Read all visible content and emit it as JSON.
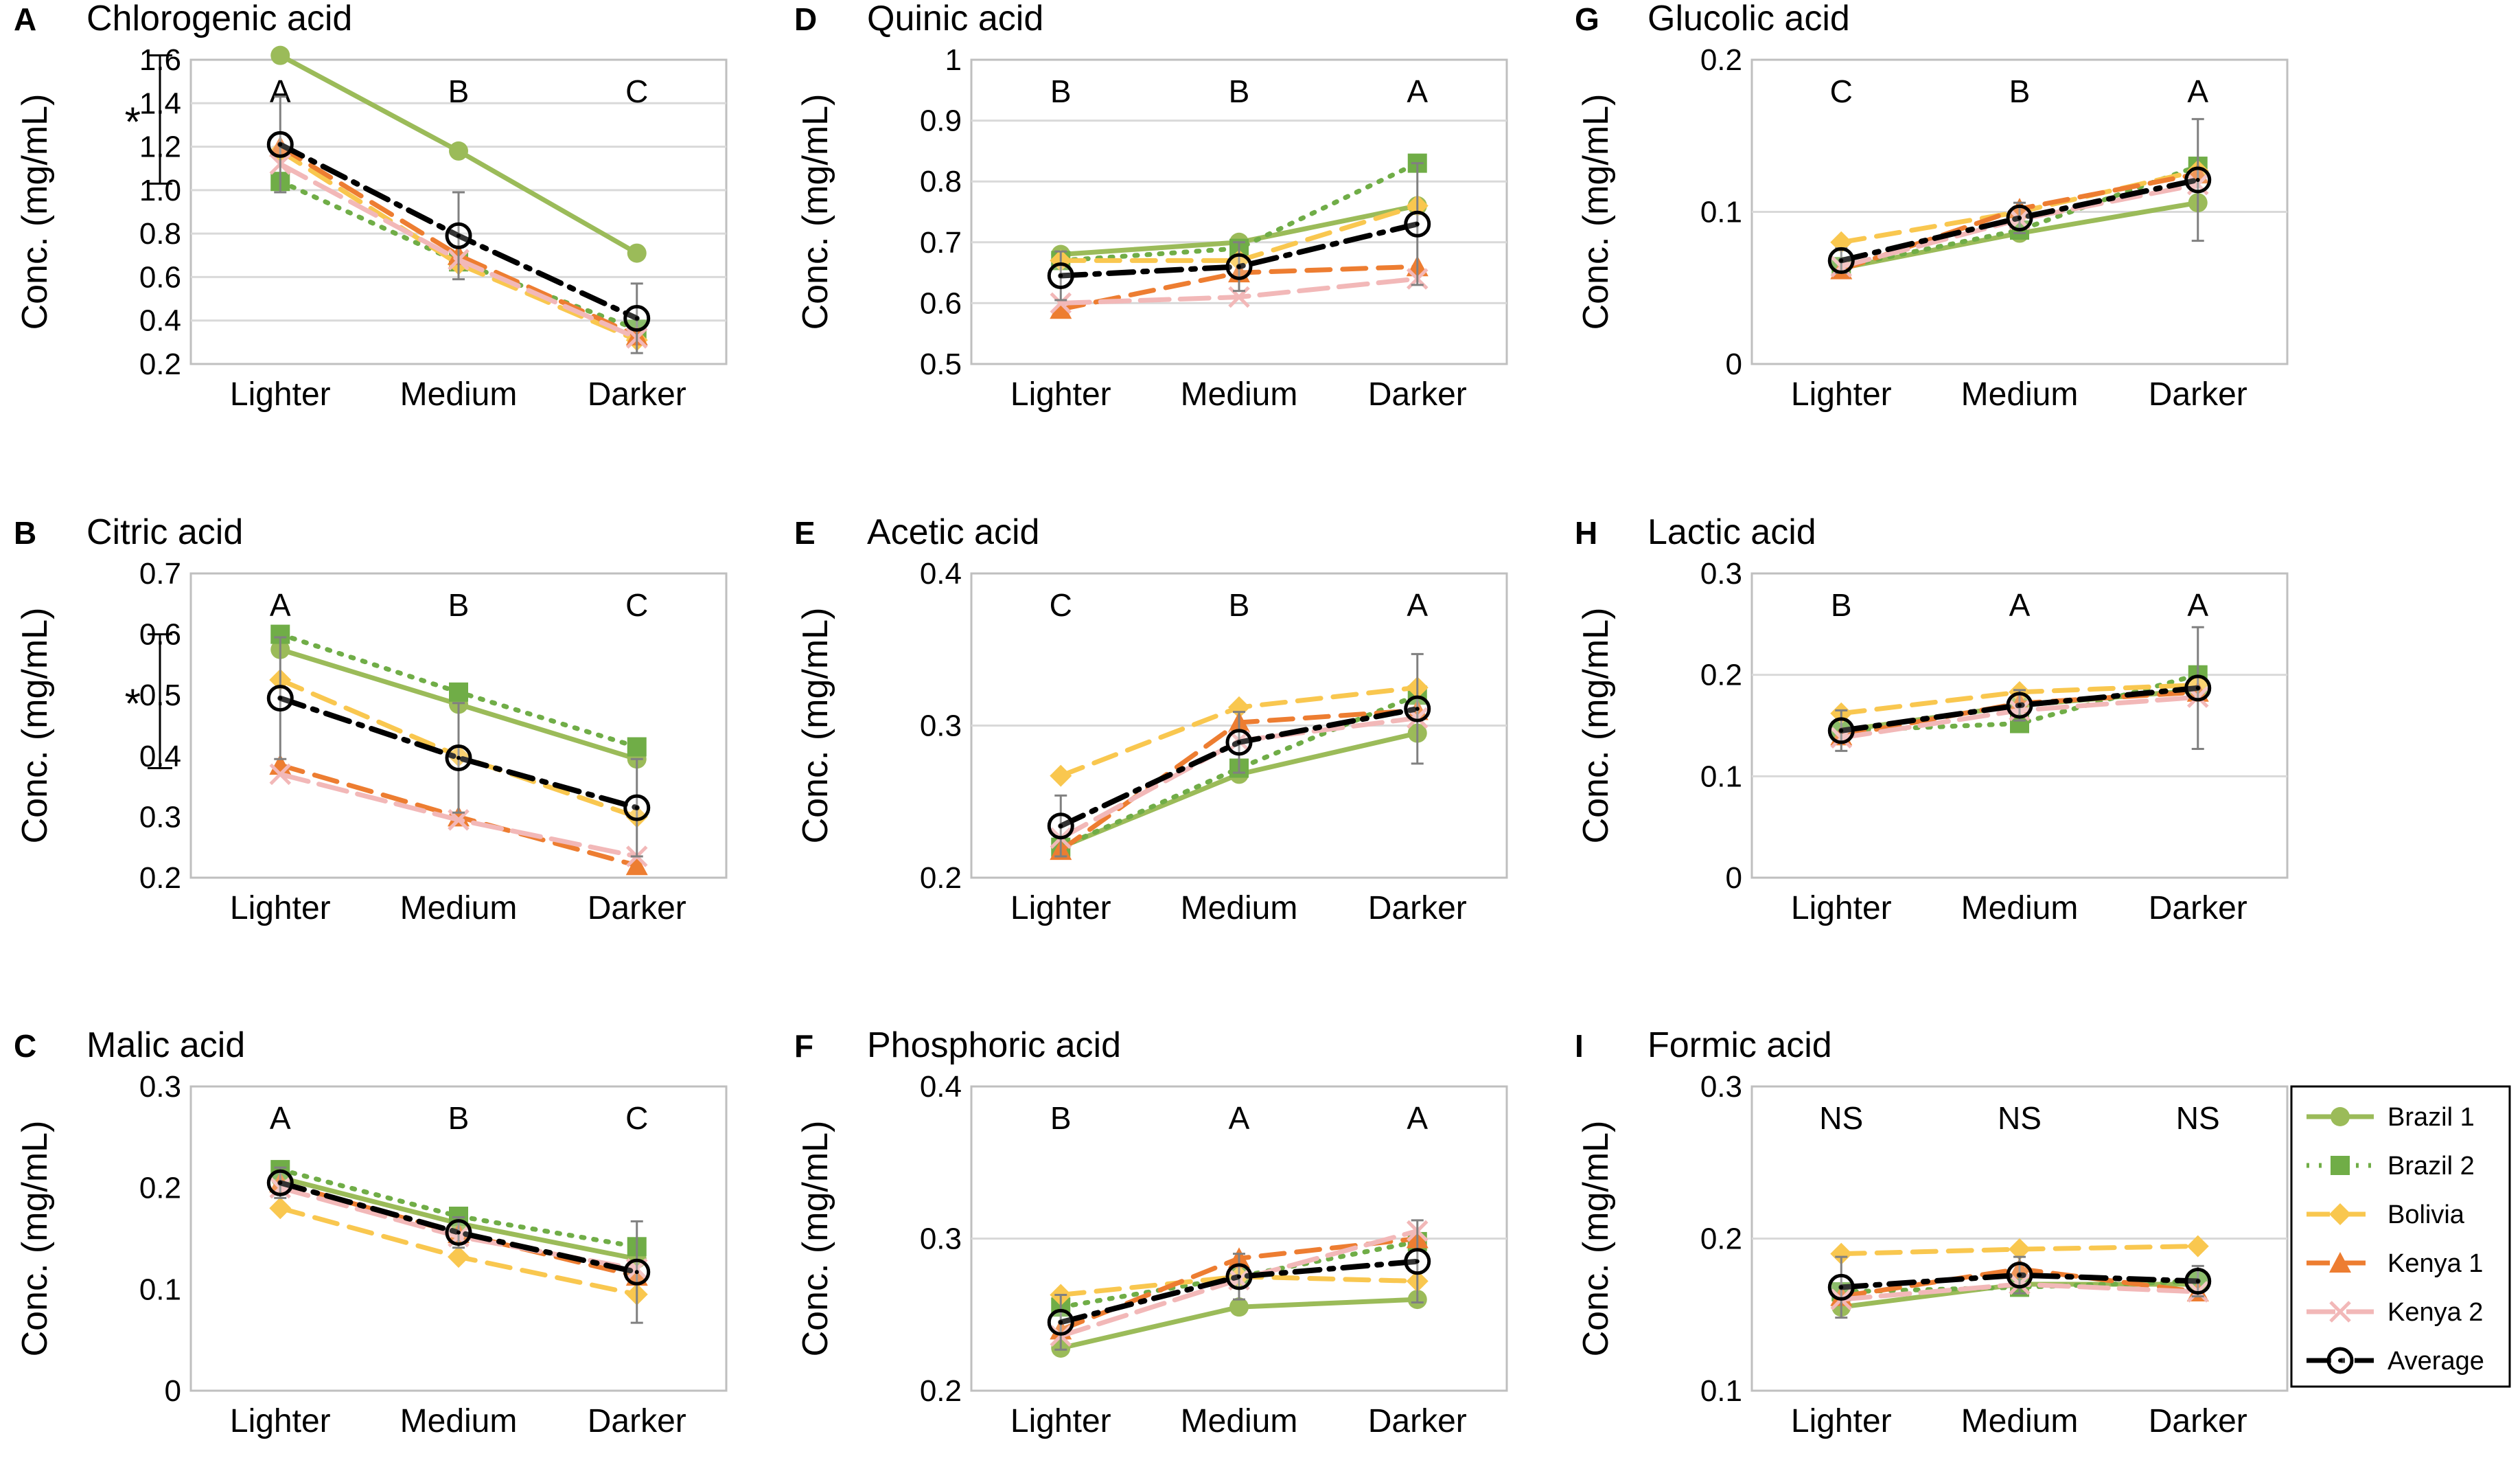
{
  "colors": {
    "Brazil 1": "#9BBB59",
    "Brazil 2": "#70AD47",
    "Bolivia": "#F9C74F",
    "Kenya 1": "#ED7D31",
    "Kenya 2": "#F2B8B8",
    "Average": "#000000"
  },
  "legend": [
    {
      "name": "Brazil 1"
    },
    {
      "name": "Brazil 2"
    },
    {
      "name": "Bolivia"
    },
    {
      "name": "Kenya 1"
    },
    {
      "name": "Kenya 2"
    },
    {
      "name": "Average"
    }
  ],
  "chart_data": [
    {
      "type": "line",
      "letter": "A",
      "title": "Chlorogenic acid",
      "ylabel": "Conc. (mg/mL)",
      "categories": [
        "Lighter",
        "Medium",
        "Darker"
      ],
      "yticks": [
        "0.2",
        "0.4",
        "0.6",
        "0.8",
        "1.0",
        "1.2",
        "1.4",
        "1.6"
      ],
      "ylim": [
        0.2,
        1.6
      ],
      "grid": true,
      "significance": [
        "A",
        "B",
        "C"
      ],
      "bracket": {
        "label": "*",
        "y": [
          1.03,
          1.62
        ]
      },
      "series": [
        {
          "name": "Brazil 1",
          "values": [
            1.62,
            1.18,
            0.71
          ]
        },
        {
          "name": "Brazil 2",
          "values": [
            1.04,
            0.67,
            0.36
          ]
        },
        {
          "name": "Bolivia",
          "values": [
            1.18,
            0.66,
            0.31
          ]
        },
        {
          "name": "Kenya 1",
          "values": [
            1.2,
            0.7,
            0.33
          ]
        },
        {
          "name": "Kenya 2",
          "values": [
            1.12,
            0.68,
            0.32
          ]
        },
        {
          "name": "Average",
          "values": [
            1.21,
            0.79,
            0.41
          ],
          "err": [
            0.22,
            0.2,
            0.16
          ]
        }
      ]
    },
    {
      "type": "line",
      "letter": "D",
      "title": "Quinic acid",
      "ylabel": "Conc. (mg/mL)",
      "categories": [
        "Lighter",
        "Medium",
        "Darker"
      ],
      "yticks": [
        "0.5",
        "0.6",
        "0.7",
        "0.8",
        "0.9",
        "1"
      ],
      "ylim": [
        0.5,
        1.0
      ],
      "grid": true,
      "significance": [
        "B",
        "B",
        "A"
      ],
      "series": [
        {
          "name": "Brazil 1",
          "values": [
            0.68,
            0.7,
            0.76
          ]
        },
        {
          "name": "Brazil 2",
          "values": [
            0.67,
            0.69,
            0.83
          ]
        },
        {
          "name": "Bolivia",
          "values": [
            0.67,
            0.67,
            0.76
          ]
        },
        {
          "name": "Kenya 1",
          "values": [
            0.59,
            0.65,
            0.66
          ]
        },
        {
          "name": "Kenya 2",
          "values": [
            0.6,
            0.61,
            0.64
          ]
        },
        {
          "name": "Average",
          "values": [
            0.645,
            0.66,
            0.73
          ],
          "err": [
            0.04,
            0.04,
            0.1
          ]
        }
      ]
    },
    {
      "type": "line",
      "letter": "G",
      "title": "Glucolic acid",
      "ylabel": "Conc. (mg/mL)",
      "categories": [
        "Lighter",
        "Medium",
        "Darker"
      ],
      "yticks": [
        "0",
        "0.1",
        "0.2"
      ],
      "ylim": [
        0,
        0.2
      ],
      "grid": true,
      "significance": [
        "C",
        "B",
        "A"
      ],
      "series": [
        {
          "name": "Brazil 1",
          "values": [
            0.063,
            0.086,
            0.106
          ]
        },
        {
          "name": "Brazil 2",
          "values": [
            0.064,
            0.088,
            0.13
          ]
        },
        {
          "name": "Bolivia",
          "values": [
            0.08,
            0.1,
            0.127
          ]
        },
        {
          "name": "Kenya 1",
          "values": [
            0.062,
            0.102,
            0.125
          ]
        },
        {
          "name": "Kenya 2",
          "values": [
            0.064,
            0.095,
            0.118
          ]
        },
        {
          "name": "Average",
          "values": [
            0.068,
            0.096,
            0.121
          ],
          "err": [
            0.008,
            0.01,
            0.04
          ]
        }
      ]
    },
    {
      "type": "line",
      "letter": "B",
      "title": "Citric acid",
      "ylabel": "Conc. (mg/mL)",
      "categories": [
        "Lighter",
        "Medium",
        "Darker"
      ],
      "yticks": [
        "0.2",
        "0.3",
        "0.4",
        "0.5",
        "0.6",
        "0.7"
      ],
      "ylim": [
        0.2,
        0.7
      ],
      "grid": false,
      "significance": [
        "A",
        "B",
        "C"
      ],
      "bracket": {
        "label": "*",
        "y": [
          0.38,
          0.6
        ]
      },
      "series": [
        {
          "name": "Brazil 1",
          "values": [
            0.575,
            0.485,
            0.395
          ]
        },
        {
          "name": "Brazil 2",
          "values": [
            0.6,
            0.505,
            0.415
          ]
        },
        {
          "name": "Bolivia",
          "values": [
            0.525,
            0.4,
            0.3
          ]
        },
        {
          "name": "Kenya 1",
          "values": [
            0.385,
            0.3,
            0.22
          ]
        },
        {
          "name": "Kenya 2",
          "values": [
            0.37,
            0.295,
            0.235
          ]
        },
        {
          "name": "Average",
          "values": [
            0.495,
            0.397,
            0.315
          ],
          "err": [
            0.1,
            0.09,
            0.08
          ]
        }
      ]
    },
    {
      "type": "line",
      "letter": "E",
      "title": "Acetic acid",
      "ylabel": "Conc. (mg/mL)",
      "categories": [
        "Lighter",
        "Medium",
        "Darker"
      ],
      "yticks": [
        "0.2",
        "0.3",
        "0.4"
      ],
      "ylim": [
        0.2,
        0.4
      ],
      "grid": true,
      "significance": [
        "C",
        "B",
        "A"
      ],
      "series": [
        {
          "name": "Brazil 1",
          "values": [
            0.22,
            0.268,
            0.295
          ]
        },
        {
          "name": "Brazil 2",
          "values": [
            0.22,
            0.272,
            0.32
          ]
        },
        {
          "name": "Bolivia",
          "values": [
            0.267,
            0.312,
            0.325
          ]
        },
        {
          "name": "Kenya 1",
          "values": [
            0.218,
            0.302,
            0.31
          ]
        },
        {
          "name": "Kenya 2",
          "values": [
            0.226,
            0.29,
            0.305
          ]
        },
        {
          "name": "Average",
          "values": [
            0.234,
            0.289,
            0.311
          ],
          "err": [
            0.02,
            0.02,
            0.036
          ]
        }
      ]
    },
    {
      "type": "line",
      "letter": "H",
      "title": "Lactic acid",
      "ylabel": "Conc. (mg/mL)",
      "categories": [
        "Lighter",
        "Medium",
        "Darker"
      ],
      "yticks": [
        "0",
        "0.1",
        "0.2",
        "0.3"
      ],
      "ylim": [
        0,
        0.3
      ],
      "grid": true,
      "significance": [
        "B",
        "A",
        "A"
      ],
      "series": [
        {
          "name": "Brazil 1",
          "values": [
            0.145,
            0.17,
            0.185
          ]
        },
        {
          "name": "Brazil 2",
          "values": [
            0.145,
            0.152,
            0.2
          ]
        },
        {
          "name": "Bolivia",
          "values": [
            0.162,
            0.183,
            0.19
          ]
        },
        {
          "name": "Kenya 1",
          "values": [
            0.14,
            0.172,
            0.183
          ]
        },
        {
          "name": "Kenya 2",
          "values": [
            0.138,
            0.165,
            0.178
          ]
        },
        {
          "name": "Average",
          "values": [
            0.145,
            0.17,
            0.187
          ],
          "err": [
            0.02,
            0.015,
            0.06
          ]
        }
      ]
    },
    {
      "type": "line",
      "letter": "C",
      "title": "Malic acid",
      "ylabel": "Conc. (mg/mL)",
      "categories": [
        "Lighter",
        "Medium",
        "Darker"
      ],
      "yticks": [
        "0",
        "0.1",
        "0.2",
        "0.3"
      ],
      "ylim": [
        0,
        0.3
      ],
      "grid": false,
      "significance": [
        "A",
        "B",
        "C"
      ],
      "series": [
        {
          "name": "Brazil 1",
          "values": [
            0.21,
            0.165,
            0.13
          ]
        },
        {
          "name": "Brazil 2",
          "values": [
            0.218,
            0.172,
            0.142
          ]
        },
        {
          "name": "Bolivia",
          "values": [
            0.18,
            0.132,
            0.095
          ]
        },
        {
          "name": "Kenya 1",
          "values": [
            0.205,
            0.155,
            0.113
          ]
        },
        {
          "name": "Kenya 2",
          "values": [
            0.2,
            0.152,
            0.12
          ]
        },
        {
          "name": "Average",
          "values": [
            0.205,
            0.156,
            0.117
          ],
          "err": [
            0.015,
            0.015,
            0.05
          ]
        }
      ]
    },
    {
      "type": "line",
      "letter": "F",
      "title": "Phosphoric acid",
      "ylabel": "Conc. (mg/mL)",
      "categories": [
        "Lighter",
        "Medium",
        "Darker"
      ],
      "yticks": [
        "0.2",
        "0.3",
        "0.4"
      ],
      "ylim": [
        0.2,
        0.4
      ],
      "grid": true,
      "significance": [
        "B",
        "A",
        "A"
      ],
      "series": [
        {
          "name": "Brazil 1",
          "values": [
            0.228,
            0.255,
            0.26
          ]
        },
        {
          "name": "Brazil 2",
          "values": [
            0.255,
            0.275,
            0.298
          ]
        },
        {
          "name": "Bolivia",
          "values": [
            0.263,
            0.275,
            0.272
          ]
        },
        {
          "name": "Kenya 1",
          "values": [
            0.24,
            0.287,
            0.3
          ]
        },
        {
          "name": "Kenya 2",
          "values": [
            0.236,
            0.273,
            0.305
          ]
        },
        {
          "name": "Average",
          "values": [
            0.245,
            0.275,
            0.285
          ],
          "err": [
            0.018,
            0.015,
            0.027
          ]
        }
      ]
    },
    {
      "type": "line",
      "letter": "I",
      "title": "Formic acid",
      "ylabel": "Conc. (mg/mL)",
      "categories": [
        "Lighter",
        "Medium",
        "Darker"
      ],
      "yticks": [
        "0.1",
        "0.2",
        "0.3"
      ],
      "ylim": [
        0.1,
        0.3
      ],
      "grid": true,
      "significance": [
        "NS",
        "NS",
        "NS"
      ],
      "series": [
        {
          "name": "Brazil 1",
          "values": [
            0.155,
            0.17,
            0.17
          ]
        },
        {
          "name": "Brazil 2",
          "values": [
            0.165,
            0.168,
            0.172
          ]
        },
        {
          "name": "Bolivia",
          "values": [
            0.19,
            0.193,
            0.195
          ]
        },
        {
          "name": "Kenya 1",
          "values": [
            0.162,
            0.18,
            0.165
          ]
        },
        {
          "name": "Kenya 2",
          "values": [
            0.16,
            0.17,
            0.165
          ]
        },
        {
          "name": "Average",
          "values": [
            0.168,
            0.176,
            0.172
          ],
          "err": [
            0.02,
            0.012,
            0.01
          ]
        }
      ]
    }
  ]
}
